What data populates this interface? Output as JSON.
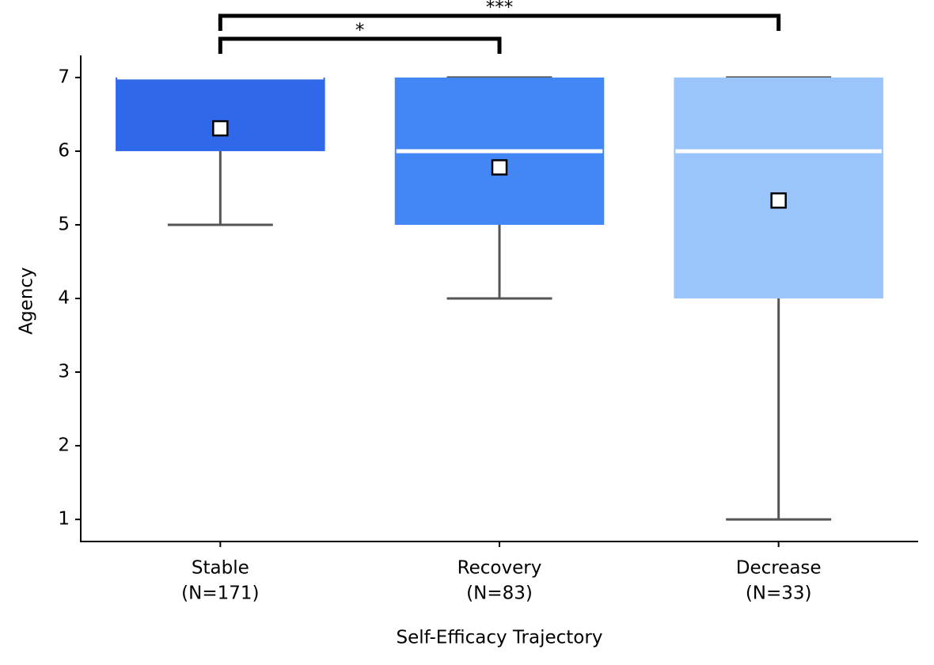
{
  "chart_data": {
    "type": "box",
    "xlabel": "Self-Efficacy Trajectory",
    "ylabel": "Agency",
    "categories": [
      "Stable",
      "Recovery",
      "Decrease"
    ],
    "group_sizes": [
      "(N=171)",
      "(N=83)",
      "(N=33)"
    ],
    "colors": [
      "#2f68e8",
      "#4287f5",
      "#99c5fc"
    ],
    "boxes": [
      {
        "whislo": 5,
        "q1": 6,
        "med": 7,
        "q3": 7,
        "whishi": 7,
        "mean": 6.31
      },
      {
        "whislo": 4,
        "q1": 5,
        "med": 6,
        "q3": 7,
        "whishi": 7,
        "mean": 5.78
      },
      {
        "whislo": 1,
        "q1": 4,
        "med": 6,
        "q3": 7,
        "whishi": 7,
        "mean": 5.33
      }
    ],
    "annotations": [
      {
        "label": "*"
      },
      {
        "label": "***"
      }
    ],
    "ylim": [
      0.7,
      7.3
    ],
    "yticks": [
      1,
      2,
      3,
      4,
      5,
      6,
      7
    ]
  }
}
